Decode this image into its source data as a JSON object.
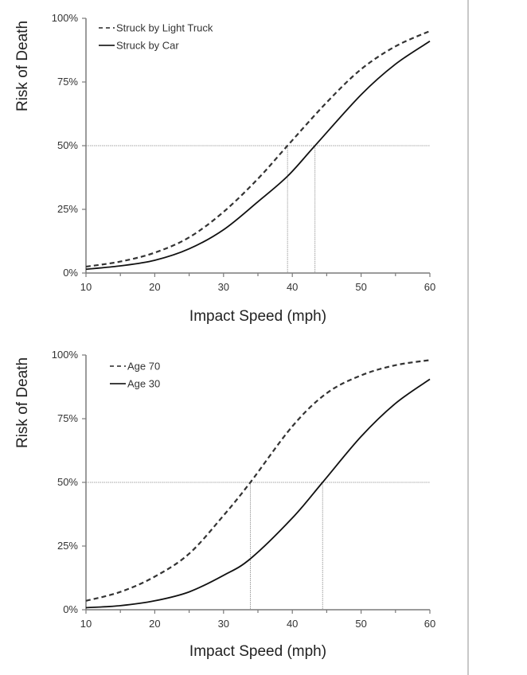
{
  "chart_data": [
    {
      "type": "line",
      "title": "",
      "xlabel": "Impact Speed (mph)",
      "ylabel": "Risk of Death",
      "xlim": [
        10,
        60
      ],
      "ylim": [
        0,
        100
      ],
      "x_ticks": [
        "10",
        "20",
        "30",
        "40",
        "50",
        "60"
      ],
      "y_ticks": [
        "0%",
        "25%",
        "50%",
        "75%",
        "100%"
      ],
      "grid": false,
      "legend_position": "top-left",
      "series": [
        {
          "name": "Struck by Light Truck",
          "style": "dashed",
          "x50": 39.3,
          "x": [
            10,
            15,
            20,
            25,
            30,
            35,
            39.3,
            45,
            50,
            55,
            60
          ],
          "y": [
            2.5,
            4.5,
            8,
            14,
            24,
            37,
            50,
            67,
            80,
            89,
            95
          ]
        },
        {
          "name": "Struck by Car",
          "style": "solid",
          "x50": 43.3,
          "x": [
            10,
            15,
            20,
            25,
            30,
            35,
            39.3,
            43.3,
            50,
            55,
            60
          ],
          "y": [
            1.5,
            2.8,
            5,
            9.5,
            17,
            28,
            38,
            50,
            70,
            82,
            91
          ]
        }
      ],
      "reference_lines": {
        "y": 50,
        "x": [
          39.3,
          43.3
        ]
      }
    },
    {
      "type": "line",
      "title": "",
      "xlabel": "Impact Speed (mph)",
      "ylabel": "Risk of Death",
      "xlim": [
        10,
        60
      ],
      "ylim": [
        0,
        100
      ],
      "x_ticks": [
        "10",
        "20",
        "30",
        "40",
        "50",
        "60"
      ],
      "y_ticks": [
        "0%",
        "25%",
        "50%",
        "75%",
        "100%"
      ],
      "grid": false,
      "legend_position": "top-left",
      "series": [
        {
          "name": "Age 70",
          "style": "dashed",
          "x50": 33.9,
          "x": [
            10,
            15,
            20,
            25,
            30,
            33.9,
            40,
            45,
            50,
            55,
            60
          ],
          "y": [
            3.5,
            7,
            13,
            22,
            37,
            50,
            72,
            85,
            92,
            96,
            98
          ]
        },
        {
          "name": "Age 30",
          "style": "solid",
          "x50": 44.4,
          "x": [
            10,
            15,
            20,
            25,
            30,
            33.9,
            40,
            44.4,
            50,
            55,
            60
          ],
          "y": [
            0.8,
            1.6,
            3.5,
            7,
            13.5,
            20,
            36,
            50,
            68,
            81,
            90.5
          ]
        }
      ],
      "reference_lines": {
        "y": 50,
        "x": [
          33.9,
          44.4
        ]
      }
    }
  ]
}
